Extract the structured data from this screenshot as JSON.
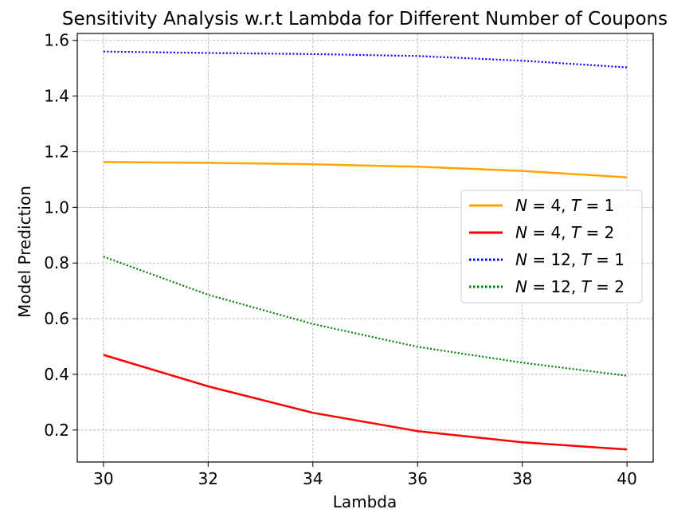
{
  "chart_data": {
    "type": "line",
    "title": "Sensitivity Analysis w.r.t Lambda for Different Number of Coupons",
    "xlabel": "Lambda",
    "ylabel": "Model Prediction",
    "xlim": [
      29.5,
      40.5
    ],
    "ylim": [
      0.085,
      1.625
    ],
    "xticks": [
      30,
      32,
      34,
      36,
      38,
      40
    ],
    "yticks": [
      0.2,
      0.4,
      0.6,
      0.8,
      1.0,
      1.2,
      1.4,
      1.6
    ],
    "ytick_labels": [
      "0.2",
      "0.4",
      "0.6",
      "0.8",
      "1.0",
      "1.2",
      "1.4",
      "1.6"
    ],
    "grid": true,
    "legend_position": "center-right",
    "x": [
      30,
      32,
      34,
      36,
      38,
      40
    ],
    "series": [
      {
        "name": "N = 4, T = 1",
        "label_parts": [
          "N",
          " = 4, ",
          "T",
          " = 1"
        ],
        "color": "#ffa500",
        "style": "solid",
        "values": [
          1.163,
          1.16,
          1.155,
          1.146,
          1.131,
          1.108
        ]
      },
      {
        "name": "N = 4, T = 2",
        "label_parts": [
          "N",
          " = 4, ",
          "T",
          " = 2"
        ],
        "color": "#ff0000",
        "style": "solid",
        "values": [
          0.47,
          0.357,
          0.262,
          0.196,
          0.156,
          0.13
        ]
      },
      {
        "name": "N = 12, T = 1",
        "label_parts": [
          "N",
          " = 12, ",
          "T",
          " = 1"
        ],
        "color": "#0000ff",
        "style": "dotted",
        "values": [
          1.56,
          1.555,
          1.551,
          1.544,
          1.527,
          1.503
        ]
      },
      {
        "name": "N = 12, T = 2",
        "label_parts": [
          "N",
          " = 12, ",
          "T",
          " = 2"
        ],
        "color": "#008000",
        "style": "dotted",
        "values": [
          0.823,
          0.686,
          0.581,
          0.499,
          0.442,
          0.395
        ]
      }
    ]
  }
}
